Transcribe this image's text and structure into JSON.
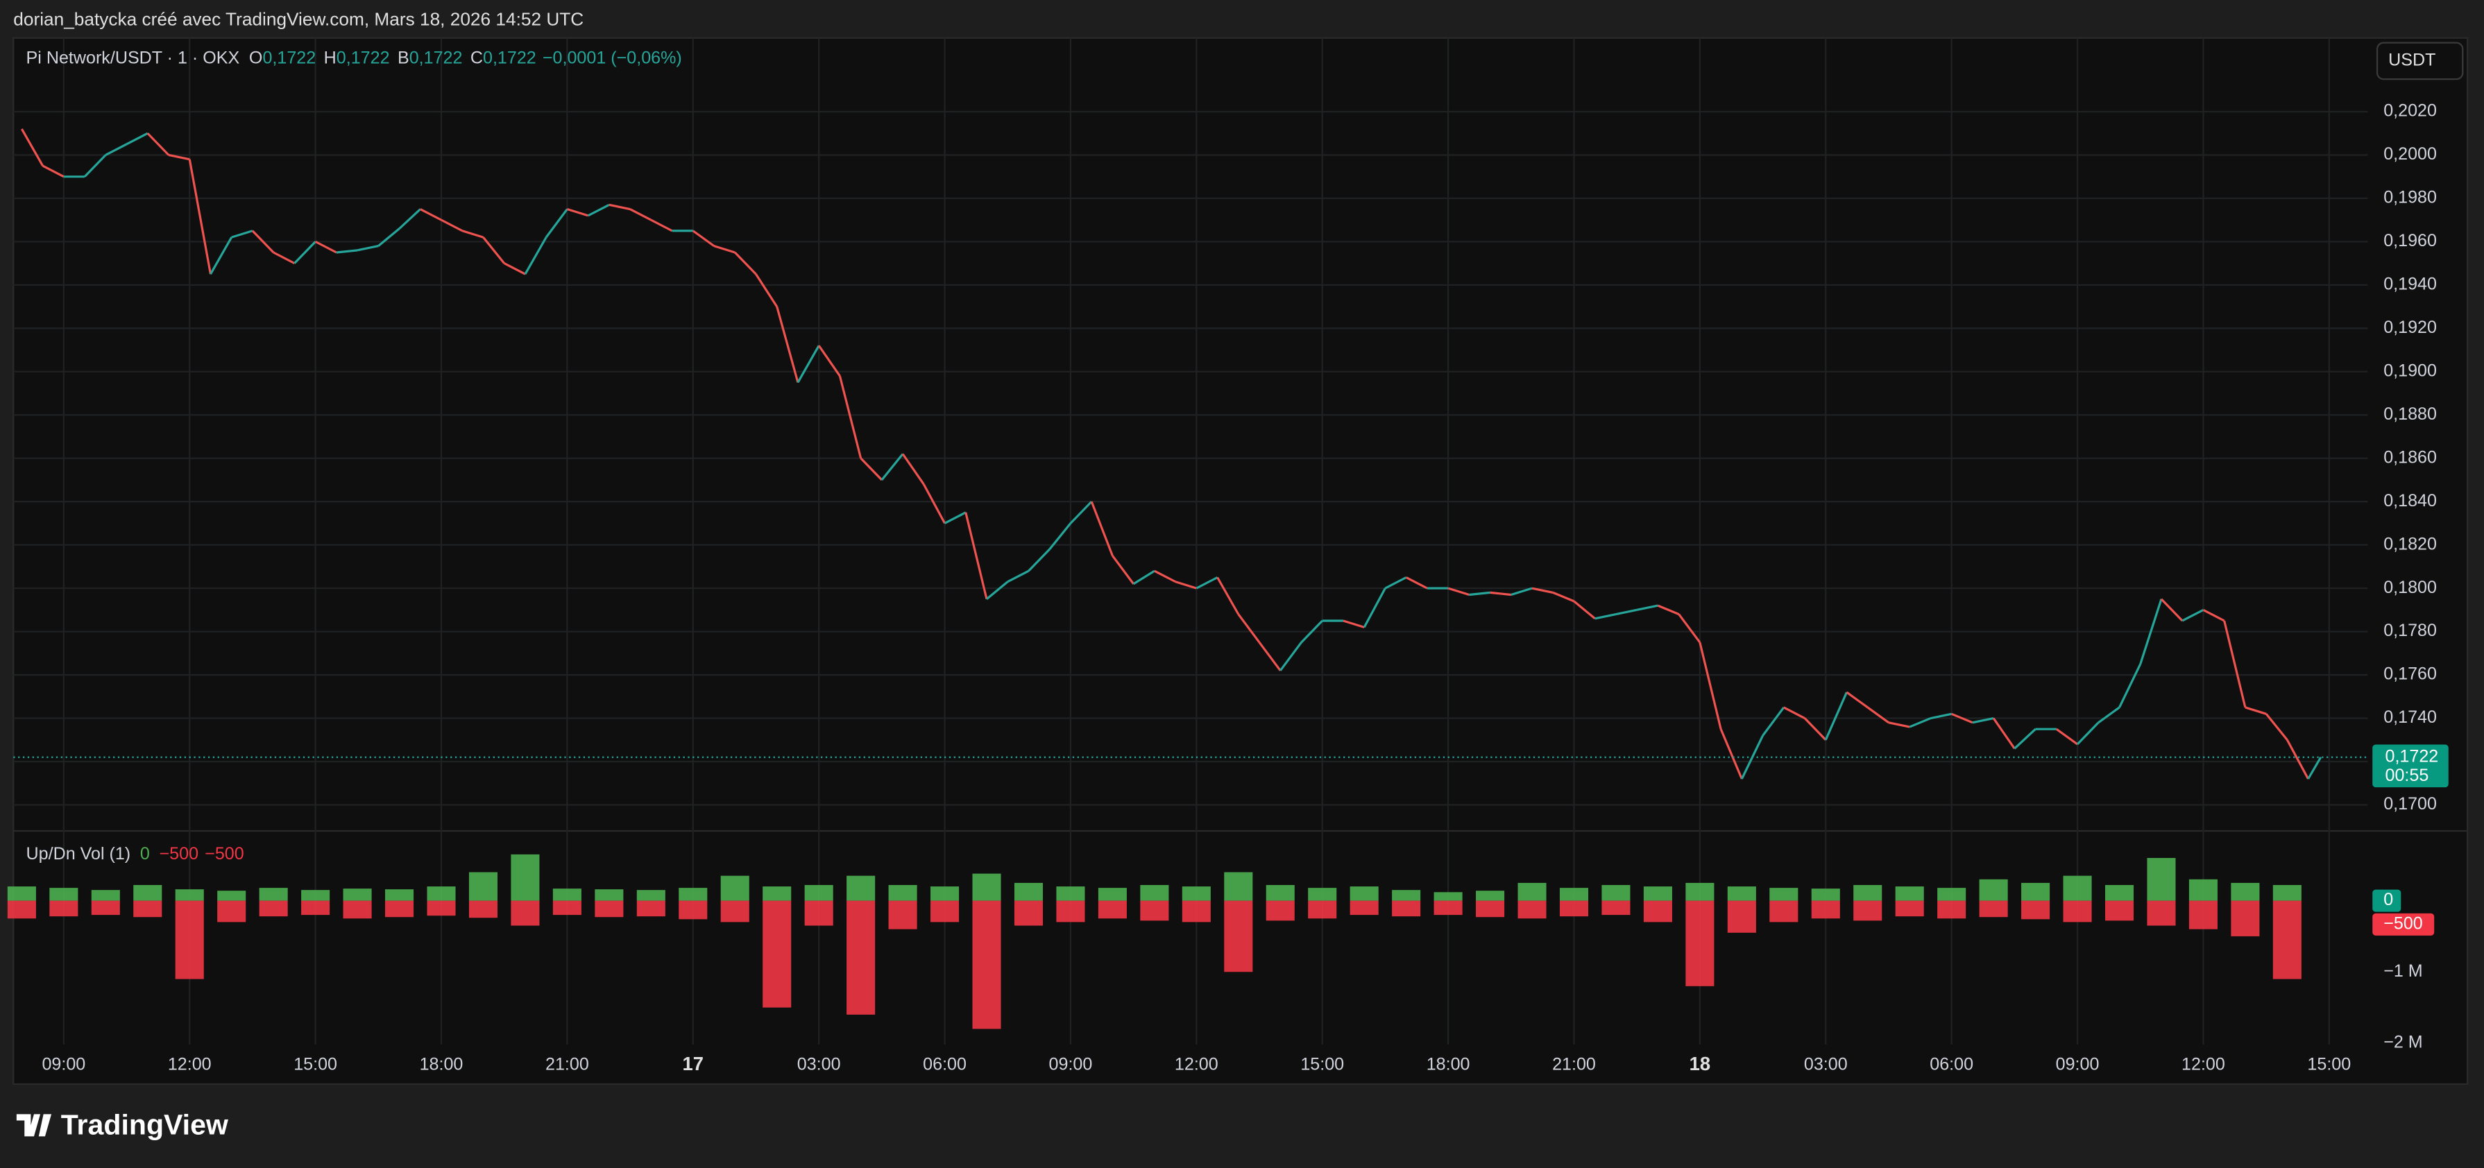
{
  "header": {
    "text": "dorian_batycka créé avec TradingView.com, Mars 18, 2026 14:52 UTC"
  },
  "footer": {
    "logo": "TradingView"
  },
  "chart_data": [
    {
      "type": "line",
      "symbol": "Pi Network/USDT · 1 · OKX",
      "ohlc": [
        {
          "key": "O",
          "value": "0,1722"
        },
        {
          "key": "H",
          "value": "0,1722"
        },
        {
          "key": "B",
          "value": "0,1722"
        },
        {
          "key": "C",
          "value": "0,1722"
        }
      ],
      "change": "−0,0001 (−0,06%)",
      "currency": "USDT",
      "up_color": "#26a69a",
      "down_color": "#ef5350",
      "x": [
        8,
        8.5,
        9,
        9.5,
        10,
        10.5,
        11,
        11.5,
        12,
        12.5,
        13,
        13.5,
        14,
        14.5,
        15,
        15.5,
        16,
        16.5,
        17,
        17.5,
        18,
        18.5,
        19,
        19.5,
        20,
        20.5,
        21,
        21.5,
        22,
        22.5,
        23,
        23.5,
        24,
        24.5,
        25,
        25.5,
        26,
        26.5,
        27,
        27.5,
        28,
        28.5,
        29,
        29.5,
        30,
        30.5,
        31,
        31.5,
        32,
        32.5,
        33,
        33.5,
        34,
        34.5,
        35,
        35.5,
        36,
        36.5,
        37,
        37.5,
        38,
        38.5,
        39,
        39.5,
        40,
        40.5,
        41,
        41.5,
        42,
        42.5,
        43,
        43.5,
        44,
        44.5,
        45,
        45.5,
        46,
        46.5,
        47,
        47.5,
        48,
        48.5,
        49,
        49.5,
        50,
        50.5,
        51,
        51.5,
        52,
        52.5,
        53,
        53.5,
        54,
        54.5,
        55,
        55.5,
        56,
        56.5,
        57,
        57.5,
        58,
        58.5,
        59,
        59.5,
        60,
        60.5,
        61,
        61.5,
        62,
        62.5,
        62.8
      ],
      "values": [
        0.2012,
        0.1995,
        0.199,
        0.199,
        0.2,
        0.2005,
        0.201,
        0.2,
        0.1998,
        0.1945,
        0.1962,
        0.1965,
        0.1955,
        0.195,
        0.196,
        0.1955,
        0.1956,
        0.1958,
        0.1966,
        0.1975,
        0.197,
        0.1965,
        0.1962,
        0.195,
        0.1945,
        0.1962,
        0.1975,
        0.1972,
        0.1977,
        0.1975,
        0.197,
        0.1965,
        0.1965,
        0.1958,
        0.1955,
        0.1945,
        0.193,
        0.1895,
        0.1912,
        0.1898,
        0.186,
        0.185,
        0.1862,
        0.1848,
        0.183,
        0.1835,
        0.1795,
        0.1803,
        0.1808,
        0.1818,
        0.183,
        0.184,
        0.1815,
        0.1802,
        0.1808,
        0.1803,
        0.18,
        0.1805,
        0.1788,
        0.1775,
        0.1762,
        0.1775,
        0.1785,
        0.1785,
        0.1782,
        0.18,
        0.1805,
        0.18,
        0.18,
        0.1797,
        0.1798,
        0.1797,
        0.18,
        0.1798,
        0.1794,
        0.1786,
        0.1788,
        0.179,
        0.1792,
        0.1788,
        0.1775,
        0.1735,
        0.1712,
        0.1732,
        0.1745,
        0.174,
        0.173,
        0.1752,
        0.1745,
        0.1738,
        0.1736,
        0.174,
        0.1742,
        0.1738,
        0.174,
        0.1726,
        0.1735,
        0.1735,
        0.1728,
        0.1738,
        0.1745,
        0.1765,
        0.1795,
        0.1785,
        0.179,
        0.1785,
        0.1745,
        0.1742,
        0.173,
        0.1712,
        0.1722
      ],
      "xlim": [
        7.8,
        62.9
      ],
      "xticks": [
        {
          "value": 9,
          "label": "09:00"
        },
        {
          "value": 12,
          "label": "12:00"
        },
        {
          "value": 15,
          "label": "15:00"
        },
        {
          "value": 18,
          "label": "18:00"
        },
        {
          "value": 21,
          "label": "21:00"
        },
        {
          "value": 24,
          "label": "17"
        },
        {
          "value": 27,
          "label": "03:00"
        },
        {
          "value": 30,
          "label": "06:00"
        },
        {
          "value": 33,
          "label": "09:00"
        },
        {
          "value": 36,
          "label": "12:00"
        },
        {
          "value": 39,
          "label": "15:00"
        },
        {
          "value": 42,
          "label": "18:00"
        },
        {
          "value": 45,
          "label": "21:00"
        },
        {
          "value": 48,
          "label": "18"
        },
        {
          "value": 51,
          "label": "03:00"
        },
        {
          "value": 54,
          "label": "06:00"
        },
        {
          "value": 57,
          "label": "09:00"
        },
        {
          "value": 60,
          "label": "12:00"
        },
        {
          "value": 63,
          "label": "15:00"
        }
      ],
      "ylim": [
        0.1688,
        0.2054
      ],
      "yticks": [
        {
          "value": 0.202,
          "label": "0,2020"
        },
        {
          "value": 0.2,
          "label": "0,2000"
        },
        {
          "value": 0.198,
          "label": "0,1980"
        },
        {
          "value": 0.196,
          "label": "0,1960"
        },
        {
          "value": 0.194,
          "label": "0,1940"
        },
        {
          "value": 0.192,
          "label": "0,1920"
        },
        {
          "value": 0.19,
          "label": "0,1900"
        },
        {
          "value": 0.188,
          "label": "0,1880"
        },
        {
          "value": 0.186,
          "label": "0,1860"
        },
        {
          "value": 0.184,
          "label": "0,1840"
        },
        {
          "value": 0.182,
          "label": "0,1820"
        },
        {
          "value": 0.18,
          "label": "0,1800"
        },
        {
          "value": 0.178,
          "label": "0,1780"
        },
        {
          "value": 0.176,
          "label": "0,1760"
        },
        {
          "value": 0.174,
          "label": "0,1740"
        },
        {
          "value": 0.172,
          "label": "0,1720"
        },
        {
          "value": 0.17,
          "label": "0,1700"
        }
      ],
      "grid": true,
      "last_price": {
        "value": 0.1722,
        "label": "0,1722"
      },
      "countdown": "00:55"
    },
    {
      "type": "bar",
      "title": "Up/Dn Vol (1)",
      "legend_values": [
        "0",
        "−500",
        "−500"
      ],
      "x": [
        8,
        9,
        10,
        11,
        12,
        13,
        14,
        15,
        16,
        17,
        18,
        19,
        20,
        21,
        22,
        23,
        24,
        25,
        26,
        27,
        28,
        29,
        30,
        31,
        32,
        33,
        34,
        35,
        36,
        37,
        38,
        39,
        40,
        41,
        42,
        43,
        44,
        45,
        46,
        47,
        48,
        49,
        50,
        51,
        52,
        53,
        54,
        55,
        56,
        57,
        58,
        59,
        60,
        61,
        62
      ],
      "series": [
        {
          "color": "#4caf50",
          "values": [
            200000,
            180000,
            150000,
            220000,
            160000,
            140000,
            180000,
            150000,
            170000,
            160000,
            200000,
            400000,
            650000,
            170000,
            160000,
            150000,
            180000,
            350000,
            200000,
            220000,
            350000,
            220000,
            200000,
            380000,
            250000,
            200000,
            180000,
            220000,
            200000,
            400000,
            220000,
            180000,
            200000,
            150000,
            120000,
            140000,
            250000,
            180000,
            220000,
            200000,
            250000,
            200000,
            180000,
            170000,
            220000,
            200000,
            180000,
            300000,
            250000,
            350000,
            220000,
            600000,
            300000,
            250000,
            220000
          ]
        },
        {
          "color": "#f23645",
          "values": [
            -250000,
            -220000,
            -200000,
            -230000,
            -1100000,
            -300000,
            -220000,
            -200000,
            -250000,
            -230000,
            -210000,
            -240000,
            -350000,
            -200000,
            -230000,
            -220000,
            -260000,
            -300000,
            -1500000,
            -350000,
            -1600000,
            -400000,
            -300000,
            -1800000,
            -350000,
            -300000,
            -250000,
            -280000,
            -300000,
            -1000000,
            -280000,
            -250000,
            -200000,
            -220000,
            -200000,
            -230000,
            -250000,
            -220000,
            -200000,
            -300000,
            -1200000,
            -450000,
            -300000,
            -250000,
            -280000,
            -220000,
            -250000,
            -230000,
            -260000,
            -300000,
            -280000,
            -350000,
            -400000,
            -500000,
            -1100000
          ]
        }
      ],
      "last_values": [
        {
          "value": 0,
          "label": "0"
        },
        {
          "value": -500,
          "label": "−500"
        }
      ],
      "ylim": [
        -2020000,
        980000
      ],
      "yticks": [
        {
          "value": -1000000,
          "label": "−1 M"
        },
        {
          "value": -2000000,
          "label": "−2 M"
        }
      ]
    }
  ]
}
